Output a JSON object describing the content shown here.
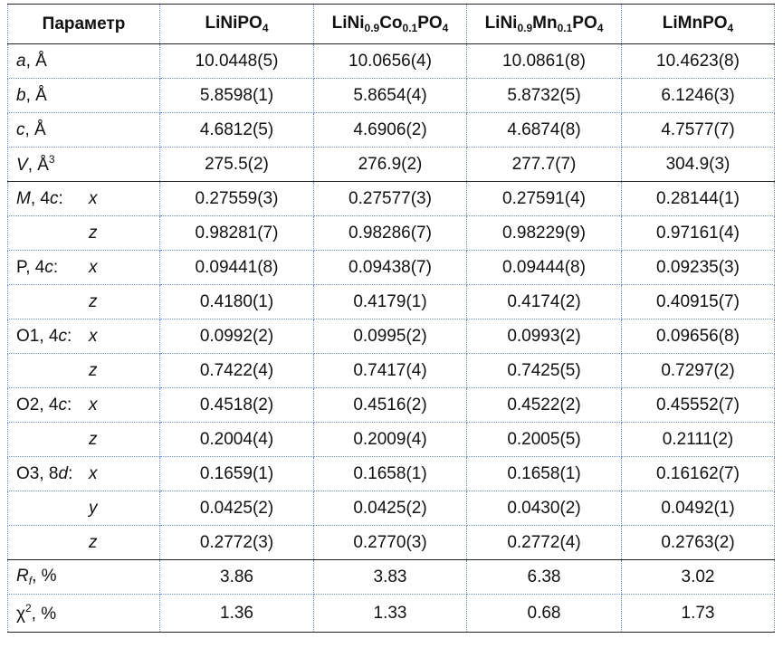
{
  "header": {
    "param": "Параметр",
    "compounds": [
      {
        "parts": [
          {
            "t": "LiNiPO"
          },
          {
            "t": "4",
            "sub": true
          }
        ]
      },
      {
        "parts": [
          {
            "t": "LiNi"
          },
          {
            "t": "0.9",
            "sub": true
          },
          {
            "t": "Co"
          },
          {
            "t": "0.1",
            "sub": true
          },
          {
            "t": "PO"
          },
          {
            "t": "4",
            "sub": true
          }
        ]
      },
      {
        "parts": [
          {
            "t": "LiNi"
          },
          {
            "t": "0.9",
            "sub": true
          },
          {
            "t": "Mn"
          },
          {
            "t": "0.1",
            "sub": true
          },
          {
            "t": "PO"
          },
          {
            "t": "4",
            "sub": true
          }
        ]
      },
      {
        "parts": [
          {
            "t": "LiMnPO"
          },
          {
            "t": "4",
            "sub": true
          }
        ]
      }
    ]
  },
  "rows": [
    {
      "label": [
        {
          "t": "a",
          "i": true
        },
        {
          "t": ", Å"
        }
      ],
      "atom": "",
      "coord": "",
      "values": [
        "10.0448(5)",
        "10.0656(4)",
        "10.0861(8)",
        "10.4623(8)"
      ]
    },
    {
      "label": [
        {
          "t": "b",
          "i": true
        },
        {
          "t": ", Å"
        }
      ],
      "atom": "",
      "coord": "",
      "values": [
        "5.8598(1)",
        "5.8654(4)",
        "5.8732(5)",
        "6.1246(3)"
      ]
    },
    {
      "label": [
        {
          "t": "c",
          "i": true
        },
        {
          "t": ", Å"
        }
      ],
      "atom": "",
      "coord": "",
      "values": [
        "4.6812(5)",
        "4.6906(2)",
        "4.6874(8)",
        "4.7577(7)"
      ]
    },
    {
      "label": [
        {
          "t": "V",
          "i": true
        },
        {
          "t": ", Å"
        },
        {
          "t": "3",
          "sup": true
        }
      ],
      "atom": "",
      "coord": "",
      "values": [
        "275.5(2)",
        "276.9(2)",
        "277.7(7)",
        "304.9(3)"
      ],
      "thick": true
    },
    {
      "label": [
        {
          "t": "M",
          "i": true
        },
        {
          "t": ", 4"
        },
        {
          "t": "c",
          "i": true
        },
        {
          "t": ":"
        }
      ],
      "coord": "x",
      "values": [
        "0.27559(3)",
        "0.27577(3)",
        "0.27591(4)",
        "0.28144(1)"
      ]
    },
    {
      "label": [],
      "coord": "z",
      "values": [
        "0.98281(7)",
        "0.98286(7)",
        "0.98229(9)",
        "0.97161(4)"
      ]
    },
    {
      "label": [
        {
          "t": "P, 4"
        },
        {
          "t": "c",
          "i": true
        },
        {
          "t": ":"
        }
      ],
      "coord": "x",
      "values": [
        "0.09441(8)",
        "0.09438(7)",
        "0.09444(8)",
        "0.09235(3)"
      ]
    },
    {
      "label": [],
      "coord": "z",
      "values": [
        "0.4180(1)",
        "0.4179(1)",
        "0.4174(2)",
        "0.40915(7)"
      ]
    },
    {
      "label": [
        {
          "t": "O1, 4"
        },
        {
          "t": "c",
          "i": true
        },
        {
          "t": ":"
        }
      ],
      "coord": "x",
      "values": [
        "0.0992(2)",
        "0.0995(2)",
        "0.0993(2)",
        "0.09656(8)"
      ]
    },
    {
      "label": [],
      "coord": "z",
      "values": [
        "0.7422(4)",
        "0.7417(4)",
        "0.7425(5)",
        "0.7297(2)"
      ]
    },
    {
      "label": [
        {
          "t": "O2, 4"
        },
        {
          "t": "c",
          "i": true
        },
        {
          "t": ":"
        }
      ],
      "coord": "x",
      "values": [
        "0.4518(2)",
        "0.4516(2)",
        "0.4522(2)",
        "0.45552(7)"
      ]
    },
    {
      "label": [],
      "coord": "z",
      "values": [
        "0.2004(4)",
        "0.2009(4)",
        "0.2005(5)",
        "0.2111(2)"
      ]
    },
    {
      "label": [
        {
          "t": "O3, 8"
        },
        {
          "t": "d",
          "i": true
        },
        {
          "t": ":"
        }
      ],
      "coord": "x",
      "values": [
        "0.1659(1)",
        "0.1658(1)",
        "0.1658(1)",
        "0.16162(7)"
      ]
    },
    {
      "label": [],
      "coord": "y",
      "values": [
        "0.0425(2)",
        "0.0425(2)",
        "0.0430(2)",
        "0.0492(1)"
      ]
    },
    {
      "label": [],
      "coord": "z",
      "values": [
        "0.2772(3)",
        "0.2770(3)",
        "0.2772(4)",
        "0.2763(2)"
      ],
      "thick": true
    },
    {
      "label": [
        {
          "t": "R",
          "i": true
        },
        {
          "t": "f",
          "i": true,
          "sub": true
        },
        {
          "t": ", %"
        }
      ],
      "coord": "",
      "values": [
        "3.86",
        "3.83",
        "6.38",
        "3.02"
      ]
    },
    {
      "label": [
        {
          "t": "χ"
        },
        {
          "t": "2",
          "sup": true
        },
        {
          "t": ", %"
        }
      ],
      "coord": "",
      "values": [
        "1.36",
        "1.33",
        "0.68",
        "1.73"
      ],
      "last": true
    }
  ]
}
